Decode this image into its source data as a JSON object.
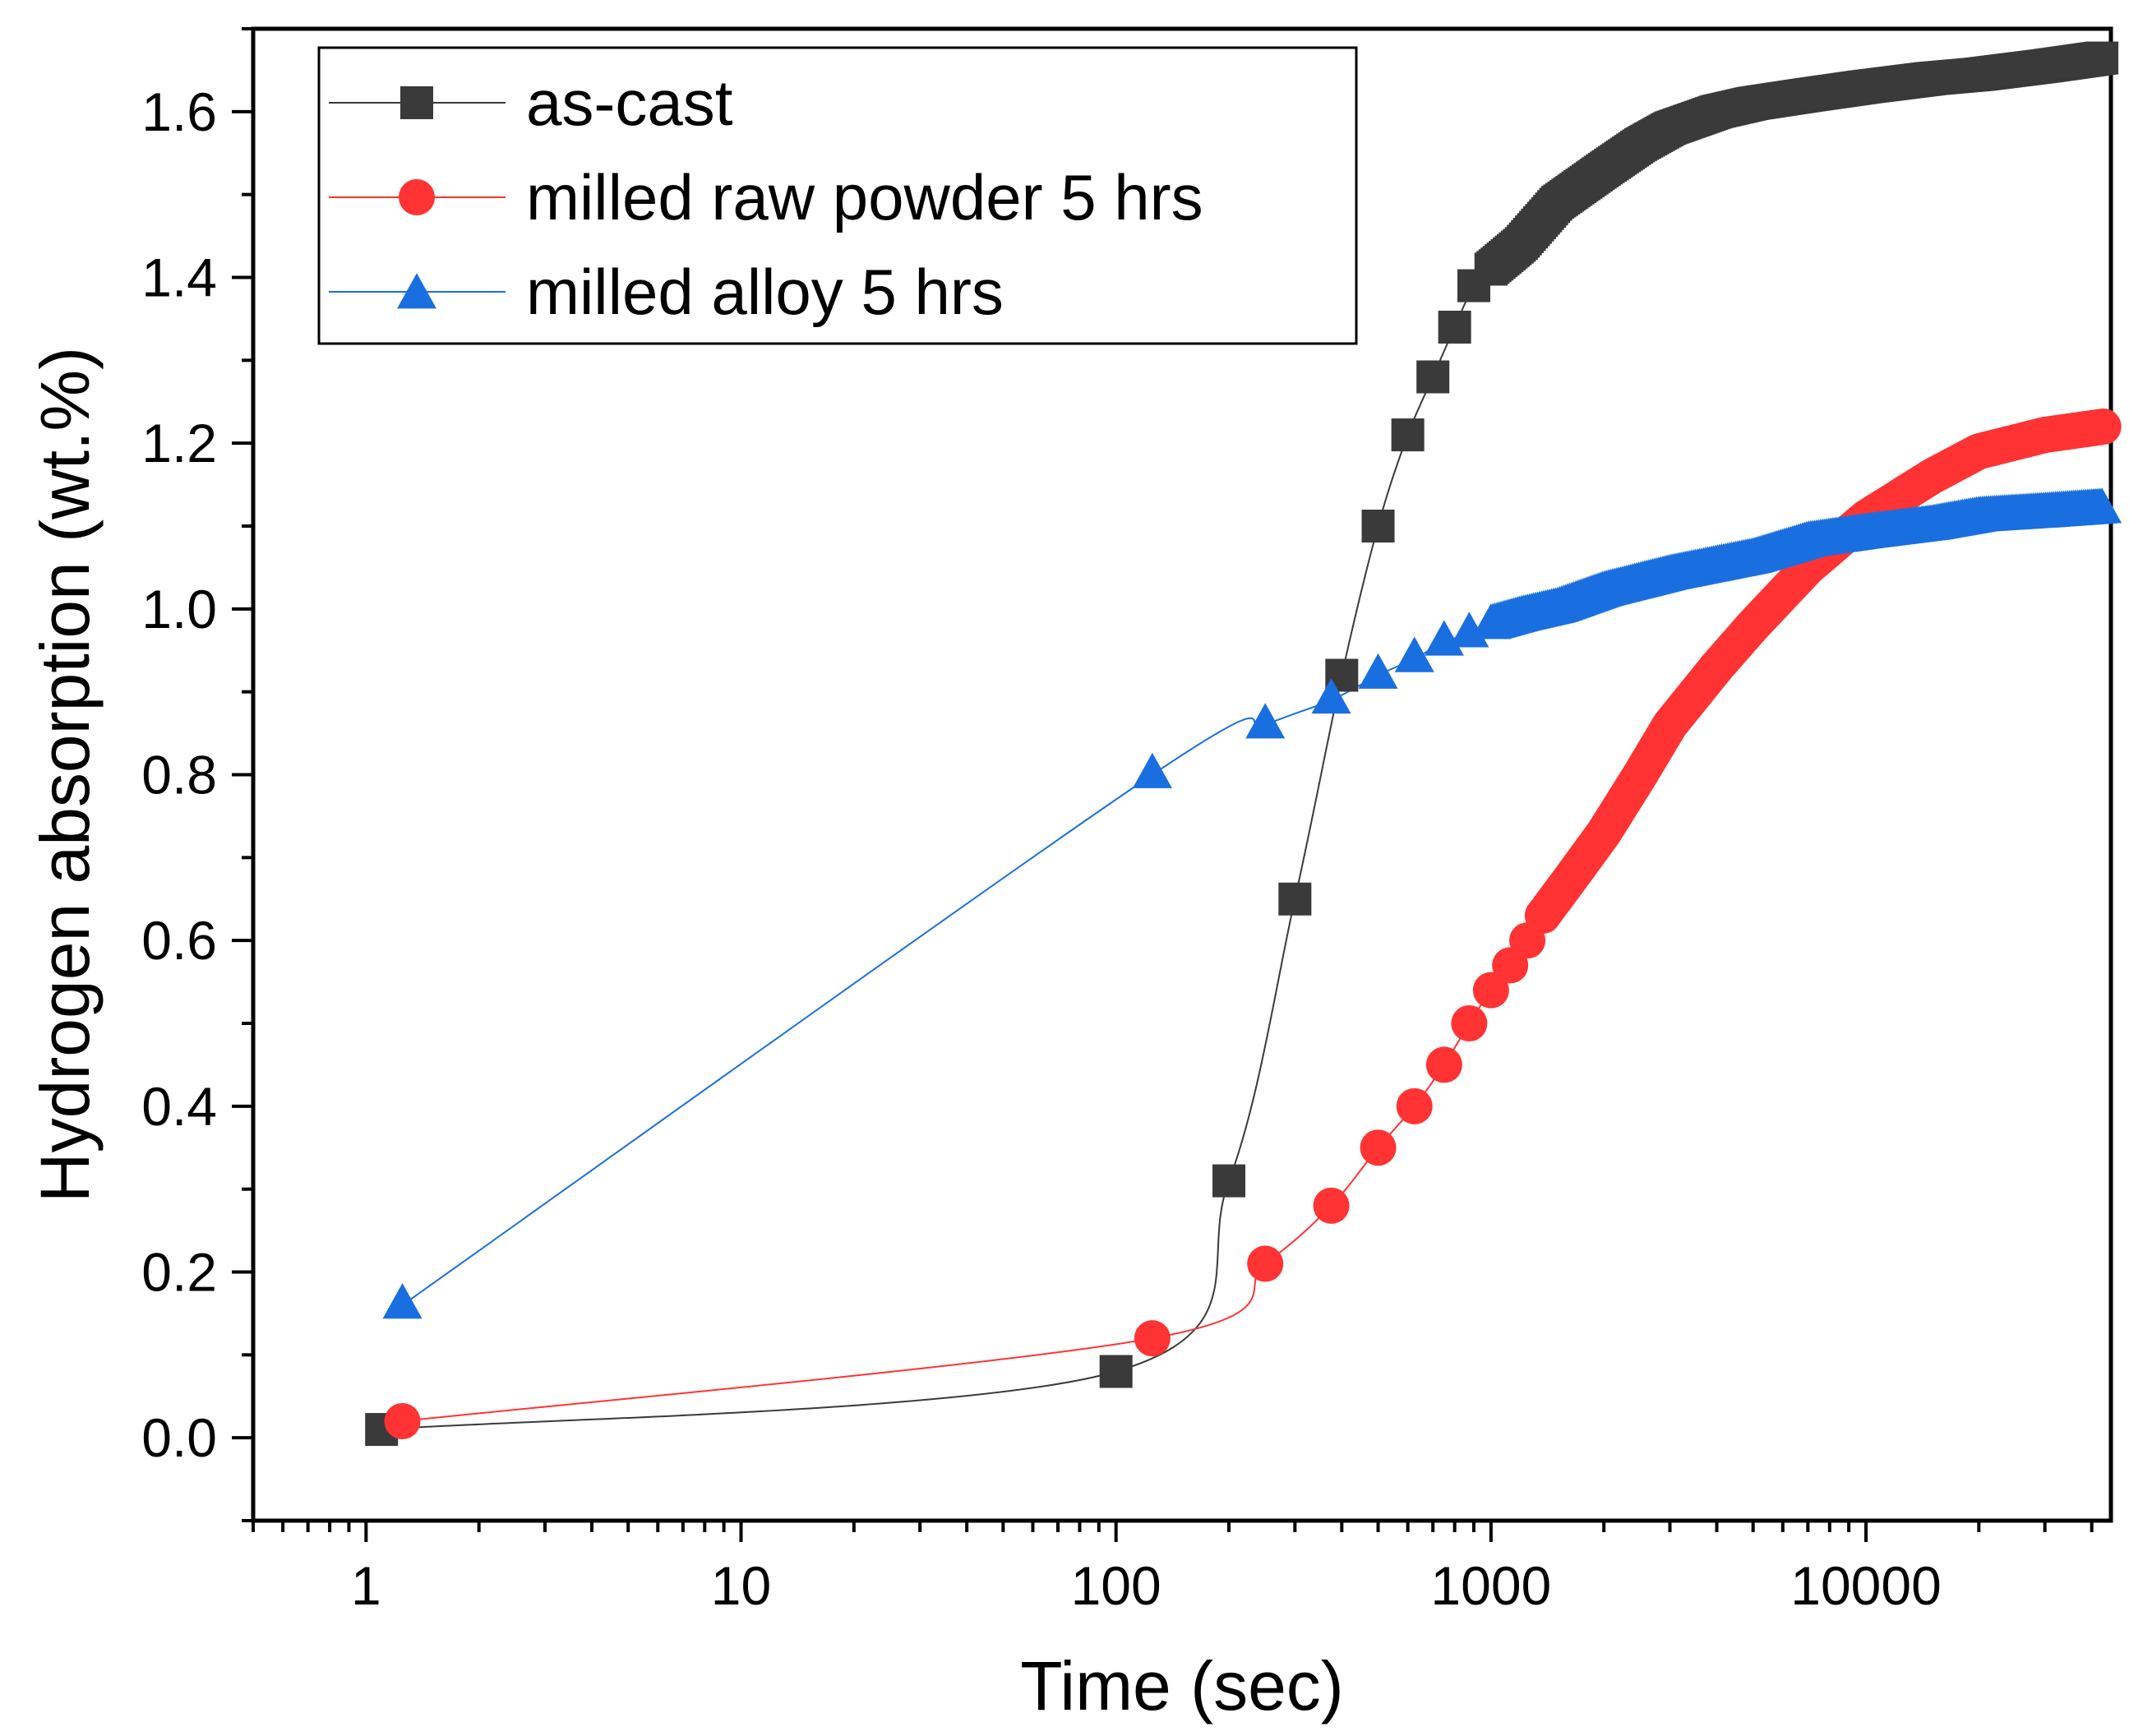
{
  "chart_data": {
    "type": "scatter",
    "title": "",
    "xlabel": "Time (sec)",
    "ylabel": "Hydrogen absorption (wt.%)",
    "xscale": "log",
    "xlim": [
      0.5,
      45000
    ],
    "ylim": [
      -0.1,
      1.7
    ],
    "x_ticks": [
      {
        "value": 1,
        "label": "1"
      },
      {
        "value": 10,
        "label": "10"
      },
      {
        "value": 100,
        "label": "100"
      },
      {
        "value": 1000,
        "label": "1000"
      },
      {
        "value": 10000,
        "label": "10000"
      }
    ],
    "y_ticks": [
      {
        "value": 0.0,
        "label": "0.0"
      },
      {
        "value": 0.2,
        "label": "0.2"
      },
      {
        "value": 0.4,
        "label": "0.4"
      },
      {
        "value": 0.6,
        "label": "0.6"
      },
      {
        "value": 0.8,
        "label": "0.8"
      },
      {
        "value": 1.0,
        "label": "1.0"
      },
      {
        "value": 1.2,
        "label": "1.2"
      },
      {
        "value": 1.4,
        "label": "1.4"
      },
      {
        "value": 1.6,
        "label": "1.6"
      }
    ],
    "legend_position": "top-left",
    "series": [
      {
        "name": "as-cast",
        "marker": "square",
        "color": "#3a3a3a",
        "line_color": "#3a3a3a",
        "x": [
          1.1,
          100,
          200,
          300,
          400,
          500,
          600,
          700,
          800,
          900,
          1000
        ],
        "y": [
          0.01,
          0.08,
          0.31,
          0.65,
          0.92,
          1.1,
          1.21,
          1.28,
          1.34,
          1.39,
          1.41
        ],
        "dense_curve": {
          "x": [
            1000,
            1200,
            1500,
            2000,
            2500,
            3000,
            4000,
            5000,
            7000,
            10000,
            15000,
            20000,
            30000,
            43000
          ],
          "y": [
            1.41,
            1.44,
            1.49,
            1.53,
            1.56,
            1.58,
            1.6,
            1.61,
            1.62,
            1.63,
            1.64,
            1.645,
            1.655,
            1.665
          ]
        }
      },
      {
        "name": "milled raw powder 5 hrs",
        "marker": "circle",
        "color": "#ff3333",
        "line_color": "#ff3333",
        "x": [
          1.25,
          125,
          250,
          375,
          500,
          625,
          750,
          875,
          1000,
          1125,
          1250,
          1375
        ],
        "y": [
          0.02,
          0.12,
          0.21,
          0.28,
          0.35,
          0.4,
          0.45,
          0.5,
          0.54,
          0.57,
          0.6,
          0.63
        ],
        "dense_curve": {
          "x": [
            1375,
            1600,
            2000,
            2500,
            3000,
            4000,
            5000,
            7000,
            10000,
            15000,
            20000,
            30000,
            43000
          ],
          "y": [
            0.63,
            0.67,
            0.73,
            0.8,
            0.86,
            0.93,
            0.98,
            1.05,
            1.11,
            1.16,
            1.19,
            1.21,
            1.22
          ]
        }
      },
      {
        "name": "milled alloy 5 hrs",
        "marker": "triangle",
        "color": "#1a6fe0",
        "line_color": "#1a6fe0",
        "x": [
          1.25,
          125,
          250,
          375,
          500,
          625,
          750,
          875,
          1000
        ],
        "y": [
          0.16,
          0.8,
          0.86,
          0.89,
          0.92,
          0.94,
          0.96,
          0.97,
          0.98
        ],
        "dense_curve": {
          "x": [
            1000,
            1200,
            1500,
            2000,
            3000,
            5000,
            7000,
            10000,
            15000,
            20000,
            30000,
            43000
          ],
          "y": [
            0.98,
            0.99,
            1.0,
            1.02,
            1.04,
            1.06,
            1.08,
            1.09,
            1.1,
            1.11,
            1.115,
            1.12
          ]
        }
      }
    ]
  }
}
